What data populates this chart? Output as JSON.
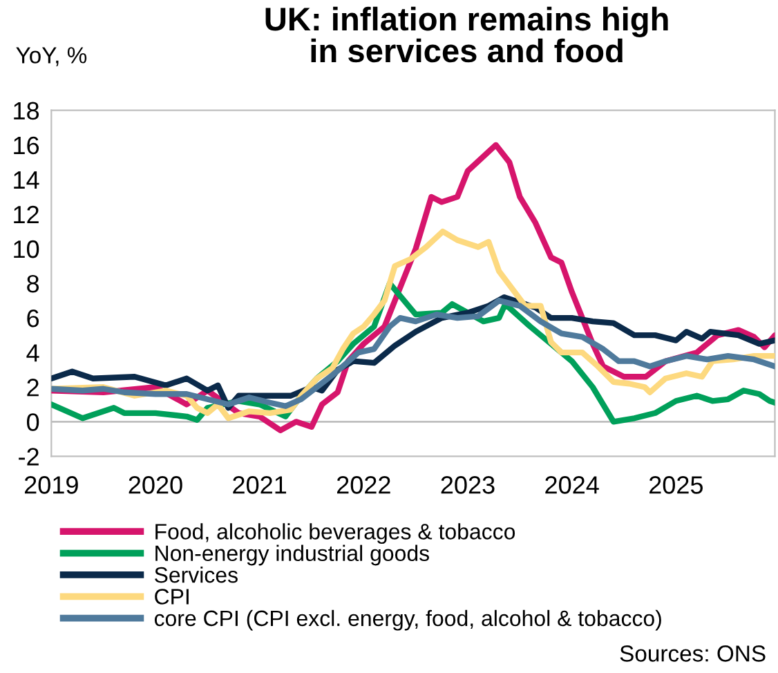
{
  "chart_data": {
    "type": "line",
    "title": "UK: inflation remains high\nin services and food",
    "ylabel": "YoY, %",
    "xlim": [
      2019,
      2025.95
    ],
    "xticks": [
      2019,
      2020,
      2021,
      2022,
      2023,
      2024,
      2025
    ],
    "ylim": [
      -2,
      18
    ],
    "yticks": [
      -2,
      0,
      2,
      4,
      6,
      8,
      10,
      12,
      14,
      16,
      18
    ],
    "grid": false,
    "legend": "bottom",
    "marker": "none",
    "line_style": "solid",
    "ref_lines": [
      {
        "axis": "y",
        "value": 0,
        "label": null,
        "color": "#bfbfbf"
      }
    ],
    "annotations": [
      "Sources: ONS"
    ],
    "series": [
      {
        "name": "Food, alcoholic beverages & tobacco",
        "color": "#d6156c",
        "x": [
          2019,
          2019.5,
          2020,
          2020.3,
          2020.5,
          2020.8,
          2021.0,
          2021.2,
          2021.35,
          2021.5,
          2021.6,
          2021.75,
          2021.85,
          2022.0,
          2022.2,
          2022.4,
          2022.5,
          2022.65,
          2022.75,
          2022.9,
          2023.0,
          2023.27,
          2023.4,
          2023.5,
          2023.65,
          2023.8,
          2023.9,
          2024.0,
          2024.2,
          2024.3,
          2024.5,
          2024.71,
          2024.9,
          2025.2,
          2025.4,
          2025.6,
          2025.75,
          2025.85,
          2025.95
        ],
        "values": [
          1.8,
          1.7,
          2.0,
          1.0,
          1.8,
          0.5,
          0.3,
          -0.5,
          0.0,
          -0.3,
          1.0,
          1.7,
          3.5,
          4.5,
          5.5,
          8.5,
          10,
          13,
          12.7,
          13,
          14.5,
          16.0,
          15,
          13,
          11.5,
          9.5,
          9.2,
          7.5,
          4.5,
          3.2,
          2.6,
          2.6,
          3.5,
          4.0,
          5.0,
          5.3,
          4.9,
          4.3,
          5.0
        ]
      },
      {
        "name": "Non-energy industrial goods",
        "color": "#00a05a",
        "x": [
          2019,
          2019.3,
          2019.6,
          2019.7,
          2020.0,
          2020.3,
          2020.4,
          2020.5,
          2020.8,
          2021.0,
          2021.25,
          2021.4,
          2021.55,
          2021.75,
          2021.9,
          2022.1,
          2022.25,
          2022.5,
          2022.75,
          2022.85,
          2023.0,
          2023.15,
          2023.3,
          2023.36,
          2023.6,
          2023.8,
          2024.0,
          2024.2,
          2024.4,
          2024.6,
          2024.8,
          2025.0,
          2025.2,
          2025.35,
          2025.5,
          2025.65,
          2025.8,
          2025.9,
          2025.95
        ],
        "values": [
          1.0,
          0.2,
          0.8,
          0.5,
          0.5,
          0.3,
          0.1,
          0.8,
          1.2,
          1.0,
          0.3,
          1.5,
          2.5,
          3.5,
          4.5,
          5.5,
          8.0,
          6.2,
          6.3,
          6.8,
          6.3,
          5.8,
          6.0,
          6.8,
          5.5,
          4.5,
          3.5,
          2.0,
          0.0,
          0.2,
          0.5,
          1.2,
          1.5,
          1.2,
          1.3,
          1.8,
          1.6,
          1.2,
          1.1
        ]
      },
      {
        "name": "Services",
        "color": "#0b2a4a",
        "x": [
          2019,
          2019.2,
          2019.4,
          2019.8,
          2020.1,
          2020.3,
          2020.5,
          2020.6,
          2020.7,
          2020.8,
          2021.0,
          2021.3,
          2021.5,
          2021.6,
          2021.75,
          2021.9,
          2022.1,
          2022.3,
          2022.5,
          2022.75,
          2023.0,
          2023.2,
          2023.35,
          2023.5,
          2023.65,
          2023.8,
          2024.0,
          2024.2,
          2024.4,
          2024.6,
          2024.8,
          2025.0,
          2025.1,
          2025.25,
          2025.33,
          2025.6,
          2025.8,
          2025.95
        ],
        "values": [
          2.5,
          2.9,
          2.5,
          2.6,
          2.1,
          2.5,
          1.8,
          2.1,
          0.8,
          1.5,
          1.5,
          1.5,
          2.0,
          1.8,
          3.0,
          3.5,
          3.4,
          4.4,
          5.2,
          6.0,
          6.3,
          6.7,
          7.2,
          6.9,
          6.6,
          6.0,
          6.0,
          5.8,
          5.7,
          5.0,
          5.0,
          4.7,
          5.2,
          4.8,
          5.2,
          5.0,
          4.5,
          4.7
        ]
      },
      {
        "name": "CPI",
        "color": "#fdd97f",
        "x": [
          2019,
          2019.5,
          2019.8,
          2020.1,
          2020.3,
          2020.4,
          2020.5,
          2020.6,
          2020.7,
          2020.9,
          2021.1,
          2021.3,
          2021.4,
          2021.55,
          2021.7,
          2021.8,
          2021.9,
          2022.0,
          2022.1,
          2022.2,
          2022.3,
          2022.45,
          2022.6,
          2022.76,
          2022.9,
          2023.1,
          2023.2,
          2023.3,
          2023.4,
          2023.55,
          2023.7,
          2023.8,
          2023.9,
          2024.1,
          2024.25,
          2024.4,
          2024.55,
          2024.7,
          2024.75,
          2024.9,
          2025.1,
          2025.25,
          2025.35,
          2025.55,
          2025.75,
          2025.95
        ],
        "values": [
          1.9,
          2.0,
          1.5,
          1.8,
          1.5,
          0.8,
          0.5,
          1.0,
          0.2,
          0.6,
          0.5,
          0.7,
          1.5,
          2.5,
          3.1,
          4.2,
          5.1,
          5.5,
          6.2,
          7.0,
          9.0,
          9.4,
          10.1,
          11.0,
          10.5,
          10.1,
          10.4,
          8.7,
          7.9,
          6.7,
          6.7,
          4.6,
          4.0,
          4.0,
          3.2,
          2.3,
          2.2,
          2.0,
          1.7,
          2.5,
          2.8,
          2.6,
          3.5,
          3.6,
          3.8,
          3.8
        ]
      },
      {
        "name": "core CPI (CPI excl. energy, food, alcohol & tobacco)",
        "color": "#4f7a9c",
        "x": [
          2019,
          2019.3,
          2019.5,
          2019.7,
          2020.0,
          2020.3,
          2020.5,
          2020.7,
          2020.9,
          2021.1,
          2021.25,
          2021.4,
          2021.55,
          2021.7,
          2021.8,
          2021.95,
          2022.1,
          2022.25,
          2022.35,
          2022.5,
          2022.7,
          2022.9,
          2023.1,
          2023.3,
          2023.5,
          2023.7,
          2023.9,
          2024.1,
          2024.3,
          2024.45,
          2024.6,
          2024.75,
          2024.9,
          2025.1,
          2025.3,
          2025.5,
          2025.75,
          2025.95
        ],
        "values": [
          1.9,
          1.8,
          1.9,
          1.7,
          1.6,
          1.6,
          1.3,
          1.0,
          1.4,
          1.1,
          0.9,
          1.3,
          2.0,
          2.7,
          3.2,
          4.0,
          4.2,
          5.5,
          6.0,
          5.8,
          6.2,
          6.0,
          6.1,
          7.0,
          6.7,
          5.8,
          5.1,
          4.9,
          4.2,
          3.5,
          3.5,
          3.2,
          3.5,
          3.8,
          3.6,
          3.8,
          3.6,
          3.2
        ]
      }
    ]
  }
}
